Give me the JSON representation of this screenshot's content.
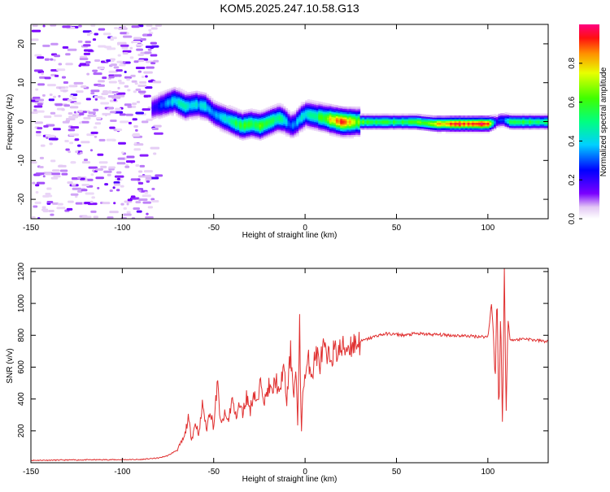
{
  "title": "KOM5.2025.247.10.58.G13",
  "chart_data": [
    {
      "type": "heatmap",
      "xlabel": "Height of straight line (km)",
      "ylabel": "Frequency (Hz)",
      "xlim": [
        -150,
        133
      ],
      "ylim": [
        -25,
        25
      ],
      "x_ticks": [
        -150,
        -100,
        -50,
        0,
        50,
        100
      ],
      "y_ticks": [
        -20,
        -10,
        0,
        10,
        20
      ],
      "colorbar": {
        "label": "Normalized spectral amplitude",
        "range": [
          0,
          1
        ],
        "ticks": [
          0.0,
          0.2,
          0.4,
          0.6,
          0.8
        ]
      },
      "ridge": {
        "note_free": true,
        "x": [
          -84,
          -78,
          -72,
          -66,
          -60,
          -55,
          -50,
          -45,
          -40,
          -35,
          -30,
          -25,
          -20,
          -15,
          -12,
          -8,
          -6,
          -3,
          0,
          5,
          10,
          15,
          20,
          30,
          40,
          50,
          60,
          70,
          80,
          90,
          100,
          104,
          106,
          108,
          112,
          120,
          133
        ],
        "freq": [
          3.5,
          4.5,
          5.5,
          4,
          4.5,
          4,
          2,
          1,
          0,
          -1,
          -0.5,
          -1,
          0,
          1,
          0.5,
          -1,
          -0.5,
          1,
          2,
          1.5,
          1,
          0.5,
          0,
          0,
          0,
          0,
          0,
          -0.5,
          -0.5,
          -0.5,
          -0.5,
          0,
          0.5,
          0.5,
          0,
          0,
          0
        ],
        "amplitude": [
          0.2,
          0.3,
          0.4,
          0.45,
          0.4,
          0.4,
          0.35,
          0.4,
          0.5,
          0.6,
          0.55,
          0.6,
          0.5,
          0.55,
          0.4,
          0.3,
          0.35,
          0.4,
          0.45,
          0.5,
          0.65,
          0.85,
          0.9,
          0.6,
          0.55,
          0.55,
          0.6,
          0.75,
          0.9,
          0.95,
          0.9,
          0.2,
          0.3,
          0.3,
          0.55,
          0.55,
          0.5
        ]
      }
    },
    {
      "type": "line",
      "xlabel": "Height of straight line (km)",
      "ylabel": "SNR (v/v)",
      "xlim": [
        -150,
        133
      ],
      "ylim": [
        0,
        1220
      ],
      "x_ticks": [
        -150,
        -100,
        -50,
        0,
        50,
        100
      ],
      "y_ticks": [
        200,
        400,
        600,
        800,
        1000,
        1200
      ],
      "line_color": "#e03030",
      "series": [
        {
          "x": [
            -150,
            -120,
            -90,
            -80,
            -75,
            -70,
            -66,
            -64,
            -62,
            -60,
            -58,
            -56,
            -54,
            -52,
            -50,
            -48,
            -46,
            -44,
            -42,
            -40,
            -38,
            -36,
            -34,
            -32,
            -30,
            -28,
            -26,
            -24,
            -22,
            -20,
            -18,
            -16,
            -14,
            -12,
            -10,
            -8,
            -6,
            -5,
            -4,
            -3,
            -2,
            -1,
            0,
            2,
            4,
            6,
            8,
            10,
            12,
            15,
            20,
            25,
            30,
            35,
            40,
            45,
            50,
            55,
            60,
            70,
            80,
            90,
            100,
            102,
            103,
            104,
            105,
            106,
            107,
            108,
            109,
            110,
            111,
            112,
            115,
            120,
            125,
            133
          ],
          "y": [
            15,
            18,
            20,
            30,
            45,
            80,
            160,
            280,
            150,
            250,
            180,
            380,
            200,
            340,
            220,
            500,
            230,
            300,
            260,
            400,
            290,
            360,
            310,
            420,
            330,
            450,
            360,
            530,
            380,
            480,
            430,
            540,
            400,
            620,
            380,
            700,
            430,
            600,
            200,
            920,
            170,
            510,
            540,
            640,
            560,
            700,
            610,
            720,
            640,
            690,
            710,
            740,
            760,
            780,
            800,
            810,
            805,
            800,
            810,
            805,
            800,
            795,
            790,
            1000,
            820,
            500,
            1080,
            280,
            950,
            220,
            1220,
            300,
            900,
            780,
            770,
            780,
            770,
            760
          ]
        }
      ]
    }
  ]
}
